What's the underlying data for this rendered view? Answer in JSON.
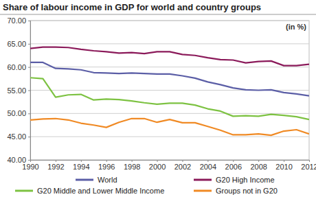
{
  "chart_data": {
    "type": "line",
    "title": "Share of labour income in GDP for world and country groups",
    "annotation": "(in %)",
    "x": [
      1990,
      1991,
      1992,
      1993,
      1994,
      1995,
      1996,
      1997,
      1998,
      1999,
      2000,
      2001,
      2002,
      2003,
      2004,
      2005,
      2006,
      2007,
      2008,
      2009,
      2010,
      2011,
      2012
    ],
    "series": [
      {
        "name": "World",
        "color": "#5b5ea6",
        "values": [
          61.0,
          61.0,
          59.7,
          59.6,
          59.4,
          58.8,
          58.7,
          58.6,
          58.7,
          58.6,
          58.5,
          58.5,
          58.1,
          57.6,
          56.8,
          56.2,
          55.5,
          55.1,
          55.0,
          55.1,
          54.5,
          54.2,
          53.8
        ]
      },
      {
        "name": "G20 High Income",
        "color": "#8b1a5a",
        "values": [
          64.0,
          64.3,
          64.3,
          64.2,
          63.8,
          63.5,
          63.3,
          63.0,
          63.1,
          62.9,
          63.3,
          63.3,
          62.7,
          62.5,
          62.0,
          61.6,
          61.5,
          60.9,
          61.2,
          61.3,
          60.3,
          60.3,
          60.6
        ]
      },
      {
        "name": "G20 Middle and Lower Middle Income",
        "color": "#7dc242",
        "values": [
          57.7,
          57.5,
          53.5,
          54.0,
          54.1,
          52.9,
          53.1,
          53.0,
          52.7,
          52.3,
          52.0,
          52.2,
          52.2,
          51.8,
          51.0,
          50.5,
          49.4,
          49.5,
          49.4,
          49.8,
          49.6,
          49.3,
          48.7
        ]
      },
      {
        "name": "Groups not in G20",
        "color": "#f08a24",
        "values": [
          48.6,
          48.8,
          48.9,
          48.6,
          47.9,
          47.5,
          47.0,
          48.1,
          48.9,
          48.9,
          48.1,
          48.7,
          48.0,
          48.0,
          47.2,
          46.4,
          45.4,
          45.4,
          45.6,
          45.3,
          46.2,
          46.5,
          45.6
        ]
      }
    ],
    "xlim": [
      1990,
      2012
    ],
    "xticks": [
      1990,
      1992,
      1994,
      1996,
      1998,
      2000,
      2002,
      2004,
      2006,
      2008,
      2010,
      2012
    ],
    "ylim": [
      40,
      70
    ],
    "yticks": [
      {
        "value": 40,
        "label": "40.00"
      },
      {
        "value": 45,
        "label": "45.00"
      },
      {
        "value": 50,
        "label": "50.00"
      },
      {
        "value": 55,
        "label": "55.00"
      },
      {
        "value": 60,
        "label": "60.00"
      },
      {
        "value": 65,
        "label": "65.00"
      },
      {
        "value": 70,
        "label": "70.00"
      }
    ],
    "grid": true,
    "legend": "bottom"
  }
}
